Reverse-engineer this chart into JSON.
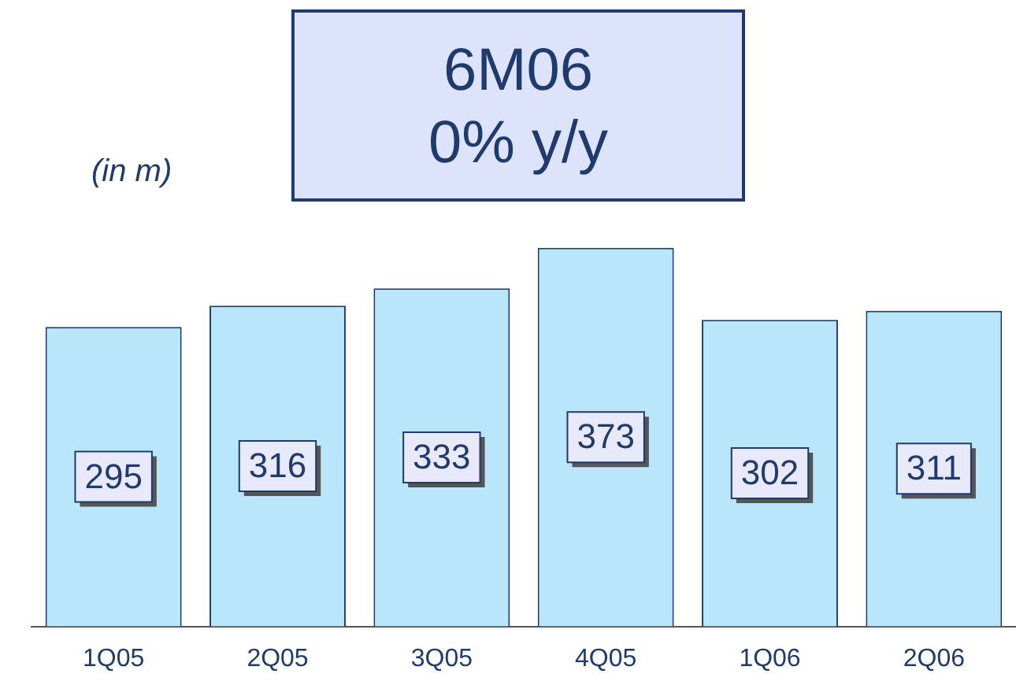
{
  "chart_data": {
    "type": "bar",
    "title": "6M06\n0% y/y",
    "ylabel": "(in m)",
    "categories": [
      "1Q05",
      "2Q05",
      "3Q05",
      "4Q05",
      "1Q06",
      "2Q06"
    ],
    "values": [
      295,
      316,
      333,
      373,
      302,
      311
    ],
    "color": "#b9e6fa",
    "data_labels": true,
    "legend": false
  }
}
